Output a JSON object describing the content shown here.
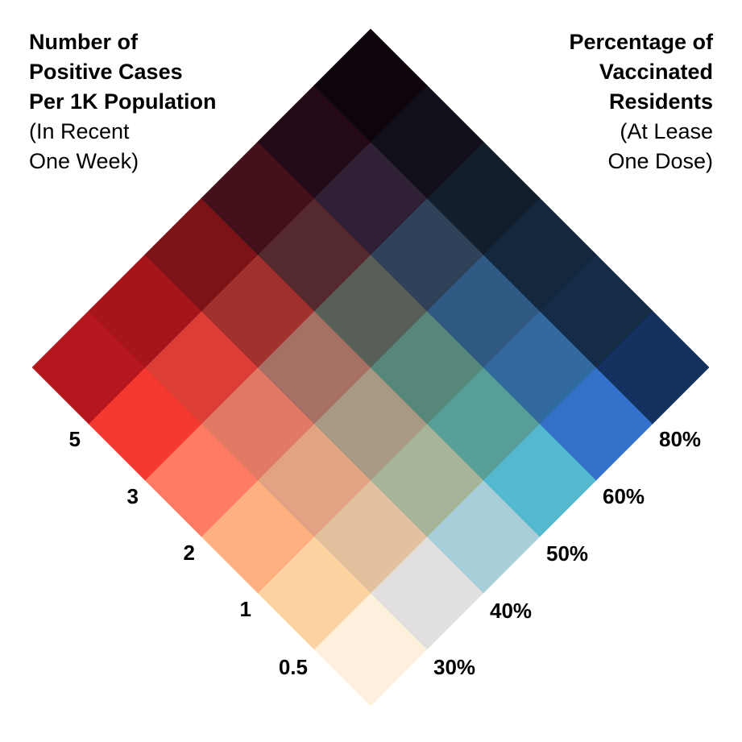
{
  "left_title": {
    "bold_lines": [
      "Number of",
      "Positive Cases",
      "Per 1K Population"
    ],
    "note_lines": [
      "(In Recent",
      "One Week)"
    ]
  },
  "right_title": {
    "bold_lines": [
      "Percentage of",
      "Vaccinated",
      "Residents"
    ],
    "note_lines": [
      "(At Lease",
      "One Dose)"
    ]
  },
  "cases_ticks": [
    "0.5",
    "1",
    "2",
    "3",
    "5"
  ],
  "vaccinated_ticks": [
    "30%",
    "40%",
    "50%",
    "60%",
    "80%"
  ],
  "grid_colors": [
    [
      "#fdf0dd",
      "#e2e0df",
      "#a8cfd9",
      "#54b8d0",
      "#3471cb",
      "#12315f"
    ],
    [
      "#fdd3a1",
      "#e3c19f",
      "#a7b49a",
      "#569e96",
      "#326aa0",
      "#152c48"
    ],
    [
      "#ffb081",
      "#e2a383",
      "#a89983",
      "#57877b",
      "#305a83",
      "#13273d"
    ],
    [
      "#fe7b64",
      "#e17964",
      "#a77064",
      "#575f56",
      "#2f4259",
      "#121e2c"
    ],
    [
      "#f43a30",
      "#dc3e36",
      "#a2302d",
      "#542a2e",
      "#2f2036",
      "#110f1a"
    ],
    [
      "#b6161d",
      "#a6151a",
      "#7b1319",
      "#44101a",
      "#240a16",
      "#0e050c"
    ]
  ]
}
